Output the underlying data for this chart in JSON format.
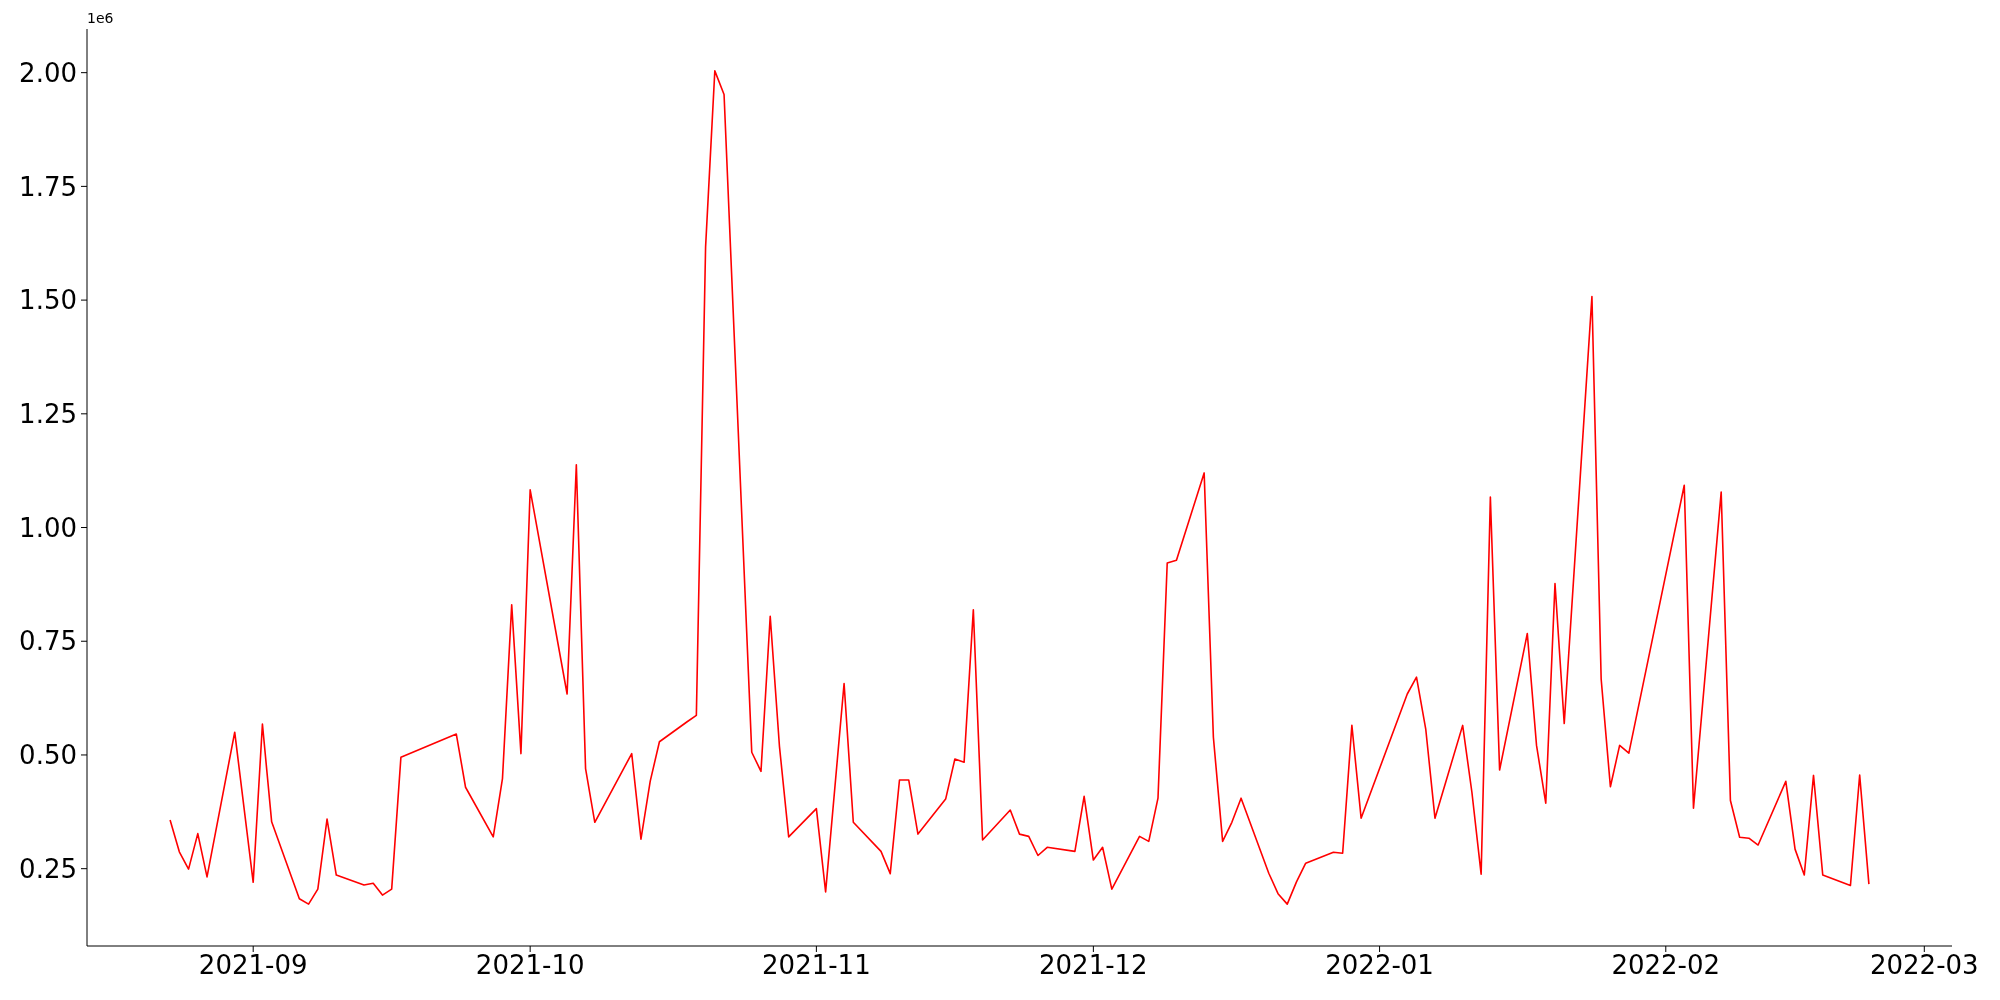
{
  "chart_data": {
    "type": "line",
    "annotations": [
      "1e6"
    ],
    "x": [
      "2021-08-23",
      "2021-08-24",
      "2021-08-25",
      "2021-08-26",
      "2021-08-27",
      "2021-08-30",
      "2021-09-01",
      "2021-09-02",
      "2021-09-03",
      "2021-09-06",
      "2021-09-07",
      "2021-09-08",
      "2021-09-09",
      "2021-09-10",
      "2021-09-13",
      "2021-09-14",
      "2021-09-15",
      "2021-09-16",
      "2021-09-17",
      "2021-09-23",
      "2021-09-24",
      "2021-09-27",
      "2021-09-28",
      "2021-09-29",
      "2021-09-30",
      "2021-10-01",
      "2021-10-05",
      "2021-10-06",
      "2021-10-07",
      "2021-10-08",
      "2021-10-12",
      "2021-10-13",
      "2021-10-14",
      "2021-10-15",
      "2021-10-18",
      "2021-10-19",
      "2021-10-20",
      "2021-10-21",
      "2021-10-22",
      "2021-10-25",
      "2021-10-26",
      "2021-10-27",
      "2021-10-28",
      "2021-10-29",
      "2021-11-01",
      "2021-11-02",
      "2021-11-04",
      "2021-11-05",
      "2021-11-08",
      "2021-11-09",
      "2021-11-10",
      "2021-11-11",
      "2021-11-12",
      "2021-11-15",
      "2021-11-16",
      "2021-11-17",
      "2021-11-18",
      "2021-11-19",
      "2021-11-22",
      "2021-11-23",
      "2021-11-24",
      "2021-11-25",
      "2021-11-26",
      "2021-11-29",
      "2021-11-30",
      "2021-12-01",
      "2021-12-02",
      "2021-12-03",
      "2021-12-06",
      "2021-12-07",
      "2021-12-08",
      "2021-12-09",
      "2021-12-10",
      "2021-12-13",
      "2021-12-14",
      "2021-12-15",
      "2021-12-16",
      "2021-12-17",
      "2021-12-20",
      "2021-12-21",
      "2021-12-22",
      "2021-12-23",
      "2021-12-24",
      "2021-12-27",
      "2021-12-28",
      "2021-12-29",
      "2021-12-30",
      "2022-01-04",
      "2022-01-05",
      "2022-01-06",
      "2022-01-07",
      "2022-01-10",
      "2022-01-11",
      "2022-01-12",
      "2022-01-13",
      "2022-01-14",
      "2022-01-17",
      "2022-01-18",
      "2022-01-19",
      "2022-01-20",
      "2022-01-21",
      "2022-01-24",
      "2022-01-25",
      "2022-01-26",
      "2022-01-27",
      "2022-01-28",
      "2022-02-03",
      "2022-02-04",
      "2022-02-07",
      "2022-02-08",
      "2022-02-09",
      "2022-02-10",
      "2022-02-11",
      "2022-02-14",
      "2022-02-15",
      "2022-02-16",
      "2022-02-17",
      "2022-02-18",
      "2022-02-21",
      "2022-02-22",
      "2022-02-23"
    ],
    "series": [
      {
        "color": "#ff0000",
        "values": [
          0.357,
          0.287,
          0.249,
          0.327,
          0.232,
          0.55,
          0.22,
          0.568,
          0.353,
          0.184,
          0.172,
          0.205,
          0.359,
          0.236,
          0.214,
          0.218,
          0.192,
          0.205,
          0.495,
          0.546,
          0.429,
          0.32,
          0.448,
          0.83,
          0.503,
          1.083,
          0.634,
          1.138,
          0.47,
          0.352,
          0.503,
          0.315,
          0.442,
          0.529,
          0.573,
          0.587,
          1.617,
          2.004,
          1.952,
          0.506,
          0.464,
          0.805,
          0.519,
          0.32,
          0.382,
          0.199,
          0.657,
          0.352,
          0.288,
          0.239,
          0.445,
          0.445,
          0.326,
          0.403,
          0.491,
          0.484,
          0.819,
          0.313,
          0.379,
          0.326,
          0.321,
          0.279,
          0.297,
          0.288,
          0.409,
          0.269,
          0.297,
          0.205,
          0.321,
          0.31,
          0.405,
          0.922,
          0.928,
          1.12,
          0.539,
          0.31,
          0.352,
          0.405,
          0.24,
          0.195,
          0.172,
          0.221,
          0.262,
          0.286,
          0.284,
          0.565,
          0.361,
          0.634,
          0.671,
          0.557,
          0.361,
          0.565,
          0.418,
          0.238,
          1.067,
          0.467,
          0.767,
          0.521,
          0.394,
          0.877,
          0.569,
          1.508,
          0.667,
          0.43,
          0.521,
          0.504,
          1.093,
          0.383,
          1.078,
          0.4,
          0.319,
          0.317,
          0.302,
          0.442,
          0.293,
          0.236,
          0.455,
          0.236,
          0.213,
          0.456,
          0.216
        ]
      }
    ],
    "xlim": [
      "2021-08-14",
      "2022-03-04"
    ],
    "xticks": [
      "2021-09",
      "2021-10",
      "2021-11",
      "2021-12",
      "2022-01",
      "2022-02",
      "2022-03"
    ],
    "ylim": [
      0.08,
      2.096
    ],
    "yticks": [
      {
        "value": 0.25,
        "label": "0.25"
      },
      {
        "value": 0.5,
        "label": "0.50"
      },
      {
        "value": 0.75,
        "label": "0.75"
      },
      {
        "value": 1,
        "label": "1.00"
      },
      {
        "value": 1.25,
        "label": "1.25"
      },
      {
        "value": 1.5,
        "label": "1.50"
      },
      {
        "value": 1.75,
        "label": "1.75"
      },
      {
        "value": 2,
        "label": "2.00"
      }
    ],
    "grid": false,
    "legend": false,
    "marker": "none",
    "line_style": "solid"
  }
}
